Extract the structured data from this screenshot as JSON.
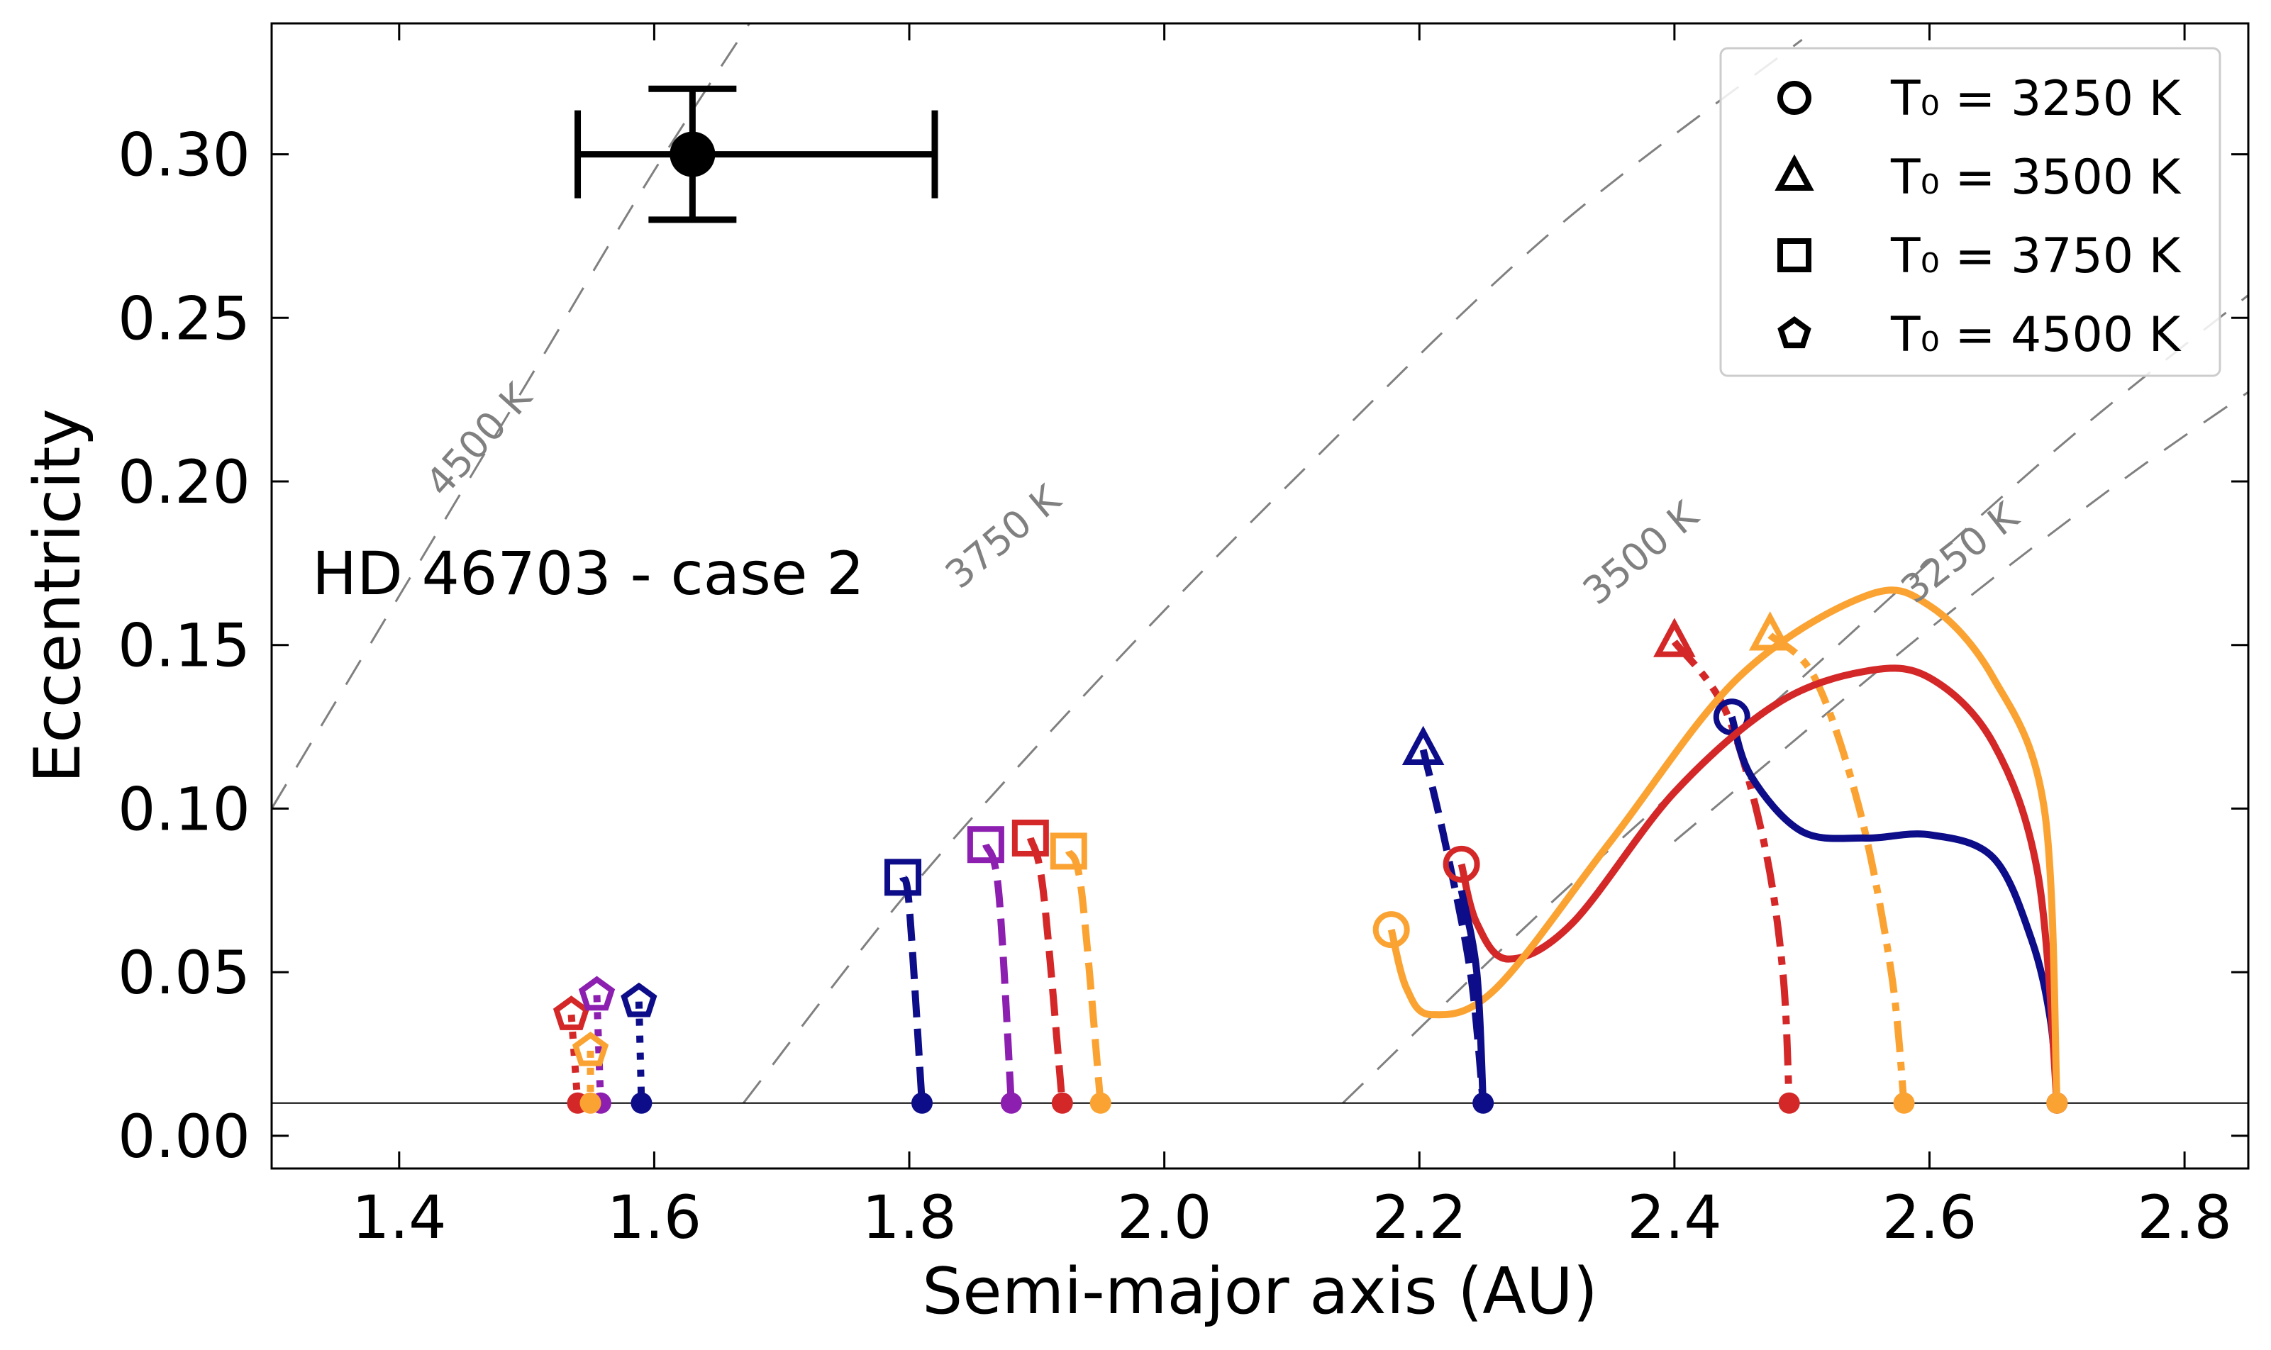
{
  "chart_data": {
    "type": "line",
    "xlabel": "Semi-major axis (AU)",
    "ylabel": "Eccentricity",
    "xlim": [
      1.3,
      2.85
    ],
    "ylim": [
      -0.01,
      0.34
    ],
    "xticks": [
      "1.4",
      "1.6",
      "1.8",
      "2.0",
      "2.2",
      "2.4",
      "2.6",
      "2.8"
    ],
    "yticks": [
      "0.00",
      "0.05",
      "0.10",
      "0.15",
      "0.20",
      "0.25",
      "0.30"
    ],
    "annotation": "HD 46703 - case 2",
    "horizontal_line_y": 0.01,
    "colors": {
      "navy": "#0d0d8a",
      "purple": "#8c1fb0",
      "red": "#d42728",
      "orange": "#fba332",
      "iso": "#808080",
      "legend_border": "#cccccc"
    },
    "observed": {
      "a": 1.63,
      "e": 0.3,
      "a_low": 1.54,
      "a_high": 1.82,
      "e_low": 0.28,
      "e_high": 0.32
    },
    "isotherms": [
      {
        "label": "4500 K",
        "points": [
          [
            1.3,
            0.1
          ],
          [
            1.4,
            0.165
          ],
          [
            1.5,
            0.23
          ],
          [
            1.6,
            0.295
          ],
          [
            1.7,
            0.355
          ]
        ]
      },
      {
        "label": "3750 K",
        "points": [
          [
            1.67,
            0.01
          ],
          [
            1.8,
            0.075
          ],
          [
            1.95,
            0.14
          ],
          [
            2.1,
            0.2
          ],
          [
            2.3,
            0.275
          ],
          [
            2.5,
            0.335
          ]
        ]
      },
      {
        "label": "3500 K",
        "points": [
          [
            2.14,
            0.01
          ],
          [
            2.3,
            0.07
          ],
          [
            2.5,
            0.14
          ],
          [
            2.7,
            0.21
          ],
          [
            2.86,
            0.26
          ]
        ]
      },
      {
        "label": "3250 K",
        "points": [
          [
            2.4,
            0.09
          ],
          [
            2.6,
            0.155
          ],
          [
            2.75,
            0.2
          ],
          [
            2.86,
            0.23
          ]
        ]
      }
    ],
    "legend": [
      {
        "marker": "circle",
        "label": "T₀ = 3250 K"
      },
      {
        "marker": "triangle",
        "label": "T₀ = 3500 K"
      },
      {
        "marker": "square",
        "label": "T₀ = 3750 K"
      },
      {
        "marker": "pentagon",
        "label": "T₀ = 4500 K"
      }
    ],
    "tracks": [
      {
        "name": "4500K-red",
        "color": "red",
        "style": "dotted",
        "marker": "pentagon",
        "points": [
          [
            1.535,
            0.037
          ],
          [
            1.54,
            0.01
          ]
        ]
      },
      {
        "name": "4500K-purple",
        "color": "purple",
        "style": "dotted",
        "marker": "pentagon",
        "points": [
          [
            1.555,
            0.043
          ],
          [
            1.558,
            0.01
          ]
        ]
      },
      {
        "name": "4500K-navy",
        "color": "navy",
        "style": "dotted",
        "marker": "pentagon",
        "points": [
          [
            1.588,
            0.041
          ],
          [
            1.59,
            0.01
          ]
        ]
      },
      {
        "name": "4500K-orange",
        "color": "orange",
        "style": "dotted",
        "marker": "pentagon",
        "points": [
          [
            1.55,
            0.026
          ],
          [
            1.55,
            0.01
          ]
        ]
      },
      {
        "name": "3750K-navy",
        "color": "navy",
        "style": "dashed",
        "marker": "square",
        "points": [
          [
            1.795,
            0.079
          ],
          [
            1.8,
            0.07
          ],
          [
            1.81,
            0.01
          ]
        ]
      },
      {
        "name": "3750K-purple",
        "color": "purple",
        "style": "dashed",
        "marker": "square",
        "points": [
          [
            1.86,
            0.089
          ],
          [
            1.87,
            0.075
          ],
          [
            1.88,
            0.01
          ]
        ]
      },
      {
        "name": "3750K-red",
        "color": "red",
        "style": "dashed",
        "marker": "square",
        "points": [
          [
            1.895,
            0.091
          ],
          [
            1.905,
            0.075
          ],
          [
            1.92,
            0.01
          ]
        ]
      },
      {
        "name": "3750K-orange",
        "color": "orange",
        "style": "dashed",
        "marker": "square",
        "points": [
          [
            1.925,
            0.087
          ],
          [
            1.935,
            0.075
          ],
          [
            1.95,
            0.01
          ]
        ]
      },
      {
        "name": "3500K-navy",
        "color": "navy",
        "style": "dashed",
        "marker": "triangle",
        "points": [
          [
            2.203,
            0.118
          ],
          [
            2.22,
            0.09
          ],
          [
            2.24,
            0.05
          ],
          [
            2.25,
            0.01
          ]
        ]
      },
      {
        "name": "3500K-red",
        "color": "red",
        "style": "dashdot",
        "marker": "triangle",
        "points": [
          [
            2.4,
            0.151
          ],
          [
            2.44,
            0.13
          ],
          [
            2.47,
            0.09
          ],
          [
            2.485,
            0.05
          ],
          [
            2.49,
            0.01
          ]
        ]
      },
      {
        "name": "3500K-orange",
        "color": "orange",
        "style": "dashdot",
        "marker": "triangle",
        "points": [
          [
            2.475,
            0.153
          ],
          [
            2.51,
            0.14
          ],
          [
            2.545,
            0.1
          ],
          [
            2.57,
            0.05
          ],
          [
            2.58,
            0.01
          ]
        ]
      },
      {
        "name": "3250K-navy",
        "color": "navy",
        "style": "solid",
        "marker": "circle",
        "points": [
          [
            2.445,
            0.128
          ],
          [
            2.46,
            0.11
          ],
          [
            2.5,
            0.093
          ],
          [
            2.55,
            0.091
          ],
          [
            2.6,
            0.092
          ],
          [
            2.65,
            0.085
          ],
          [
            2.68,
            0.06
          ],
          [
            2.695,
            0.035
          ],
          [
            2.7,
            0.01
          ]
        ]
      },
      {
        "name": "3250K-red",
        "color": "red",
        "style": "solid",
        "marker": "circle",
        "points": [
          [
            2.233,
            0.083
          ],
          [
            2.245,
            0.065
          ],
          [
            2.27,
            0.054
          ],
          [
            2.32,
            0.065
          ],
          [
            2.4,
            0.105
          ],
          [
            2.48,
            0.132
          ],
          [
            2.55,
            0.142
          ],
          [
            2.6,
            0.14
          ],
          [
            2.65,
            0.12
          ],
          [
            2.685,
            0.08
          ],
          [
            2.7,
            0.01
          ]
        ]
      },
      {
        "name": "3250K-orange",
        "color": "orange",
        "style": "solid",
        "marker": "circle",
        "points": [
          [
            2.178,
            0.063
          ],
          [
            2.19,
            0.045
          ],
          [
            2.21,
            0.037
          ],
          [
            2.26,
            0.045
          ],
          [
            2.35,
            0.09
          ],
          [
            2.45,
            0.14
          ],
          [
            2.55,
            0.165
          ],
          [
            2.6,
            0.162
          ],
          [
            2.65,
            0.14
          ],
          [
            2.69,
            0.1
          ],
          [
            2.7,
            0.01
          ]
        ]
      },
      {
        "name": "3250K-navy-mid",
        "color": "navy",
        "style": "solid",
        "marker": "none",
        "points": [
          [
            2.233,
            0.075
          ],
          [
            2.245,
            0.05
          ],
          [
            2.25,
            0.01
          ]
        ]
      }
    ]
  }
}
